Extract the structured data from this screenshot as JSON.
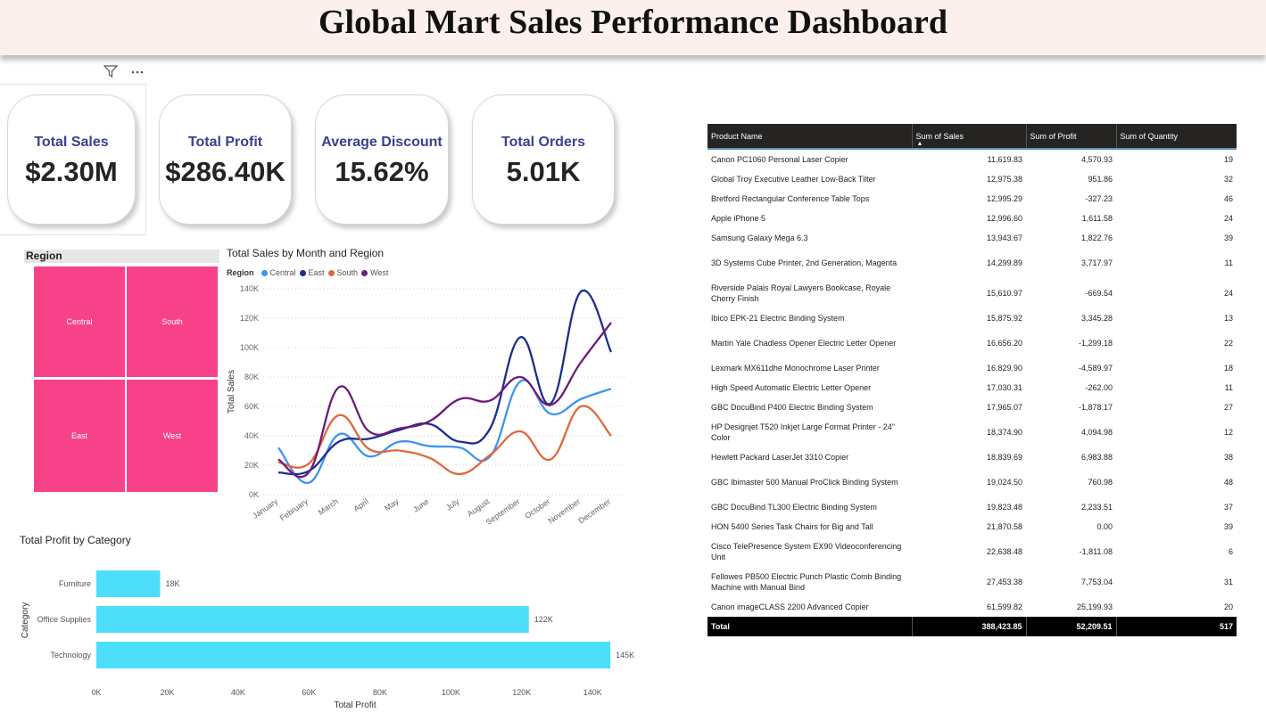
{
  "header": {
    "title": "Global Mart Sales Performance Dashboard"
  },
  "visual_icons": {
    "filter": "filter-icon",
    "more": "more-options-icon"
  },
  "kpis": [
    {
      "label": "Total Sales",
      "value": "$2.30M"
    },
    {
      "label": "Total Profit",
      "value": "$286.40K"
    },
    {
      "label": "Average Discount",
      "value": "15.62%"
    },
    {
      "label": "Total Orders",
      "value": "5.01K"
    }
  ],
  "region_slicer": {
    "title": "Region",
    "tiles": [
      "Central",
      "South",
      "East",
      "West"
    ],
    "color": "#f7428a"
  },
  "chart_data": [
    {
      "type": "line",
      "title": "Total Sales by Month and Region",
      "xlabel": "",
      "ylabel": "Total Sales",
      "legend_title": "Region",
      "legend_position": "top-left",
      "categories": [
        "January",
        "February",
        "March",
        "April",
        "May",
        "June",
        "July",
        "August",
        "September",
        "October",
        "November",
        "December"
      ],
      "y_ticks": [
        "0K",
        "20K",
        "40K",
        "60K",
        "80K",
        "100K",
        "120K",
        "140K"
      ],
      "ylim": [
        0,
        140000
      ],
      "grid": true,
      "series": [
        {
          "name": "Central",
          "color": "#3f94f2",
          "values": [
            32000,
            8000,
            41000,
            26000,
            36000,
            33000,
            32000,
            26000,
            77000,
            55000,
            65000,
            72000
          ]
        },
        {
          "name": "East",
          "color": "#1e2d8f",
          "values": [
            15000,
            16000,
            36000,
            38000,
            44000,
            48000,
            36000,
            45000,
            107000,
            62000,
            138000,
            97000
          ]
        },
        {
          "name": "South",
          "color": "#e0693b",
          "values": [
            22000,
            21000,
            54000,
            31000,
            30000,
            25000,
            14000,
            27000,
            43000,
            24000,
            60000,
            40000
          ]
        },
        {
          "name": "West",
          "color": "#6b1c7b",
          "values": [
            24000,
            15000,
            73000,
            43000,
            45000,
            50000,
            65000,
            64000,
            80000,
            61000,
            90000,
            117000
          ]
        }
      ]
    },
    {
      "type": "bar",
      "orientation": "horizontal",
      "title": "Total Profit by Category",
      "xlabel": "Total Profit",
      "ylabel": "Category",
      "categories": [
        "Furniture",
        "Office Supplies",
        "Technology"
      ],
      "values": [
        18000,
        122000,
        145000
      ],
      "data_labels": [
        "18K",
        "122K",
        "145K"
      ],
      "x_ticks": [
        "0K",
        "20K",
        "40K",
        "60K",
        "80K",
        "100K",
        "120K",
        "140K"
      ],
      "xlim": [
        0,
        150000
      ],
      "color": "#4ddff9"
    }
  ],
  "table": {
    "columns": [
      "Product Name",
      "Sum of Sales",
      "Sum of Profit",
      "Sum of Quantity"
    ],
    "sort_indicator": "▲",
    "rows": [
      [
        "Canon PC1060 Personal Laser Copier",
        "11,619.83",
        "4,570.93",
        "19"
      ],
      [
        "Global Troy Executive Leather Low-Back Tilter",
        "12,975.38",
        "951.86",
        "32"
      ],
      [
        "Bretford Rectangular Conference Table Tops",
        "12,995.29",
        "-327.23",
        "46"
      ],
      [
        "Apple iPhone 5",
        "12,996.60",
        "1,611.58",
        "24"
      ],
      [
        "Samsung Galaxy Mega 6.3",
        "13,943.67",
        "1,822.76",
        "39"
      ],
      [
        "3D Systems Cube Printer, 2nd Generation, Magenta",
        "14,299.89",
        "3,717.97",
        "11"
      ],
      [
        "Riverside Palais Royal Lawyers Bookcase, Royale Cherry Finish",
        "15,610.97",
        "-669.54",
        "24"
      ],
      [
        "Ibico EPK-21 Electric Binding System",
        "15,875.92",
        "3,345.28",
        "13"
      ],
      [
        "Martin Yale Chadless Opener Electric Letter Opener",
        "16,656.20",
        "-1,299.18",
        "22"
      ],
      [
        "Lexmark MX611dhe Monochrome Laser Printer",
        "16,829.90",
        "-4,589.97",
        "18"
      ],
      [
        "High Speed Automatic Electric Letter Opener",
        "17,030.31",
        "-262.00",
        "11"
      ],
      [
        "GBC DocuBind P400 Electric Binding System",
        "17,965.07",
        "-1,878.17",
        "27"
      ],
      [
        "HP Designjet T520 Inkjet Large Format Printer - 24\" Color",
        "18,374.90",
        "4,094.98",
        "12"
      ],
      [
        "Hewlett Packard LaserJet 3310 Copier",
        "18,839.69",
        "6,983.88",
        "38"
      ],
      [
        "GBC Ibimaster 500 Manual ProClick Binding System",
        "19,024.50",
        "760.98",
        "48"
      ],
      [
        "GBC DocuBind TL300 Electric Binding System",
        "19,823.48",
        "2,233.51",
        "37"
      ],
      [
        "HON 5400 Series Task Chairs for Big and Tall",
        "21,870.58",
        "0.00",
        "39"
      ],
      [
        "Cisco TelePresence System EX90 Videoconferencing Unit",
        "22,638.48",
        "-1,811.08",
        "6"
      ],
      [
        "Fellowes PB500 Electric Punch Plastic Comb Binding Machine with Manual Bind",
        "27,453.38",
        "7,753.04",
        "31"
      ],
      [
        "Canon imageCLASS 2200 Advanced Copier",
        "61,599.82",
        "25,199.93",
        "20"
      ]
    ],
    "total": [
      "Total",
      "388,423.85",
      "52,209.51",
      "517"
    ]
  }
}
